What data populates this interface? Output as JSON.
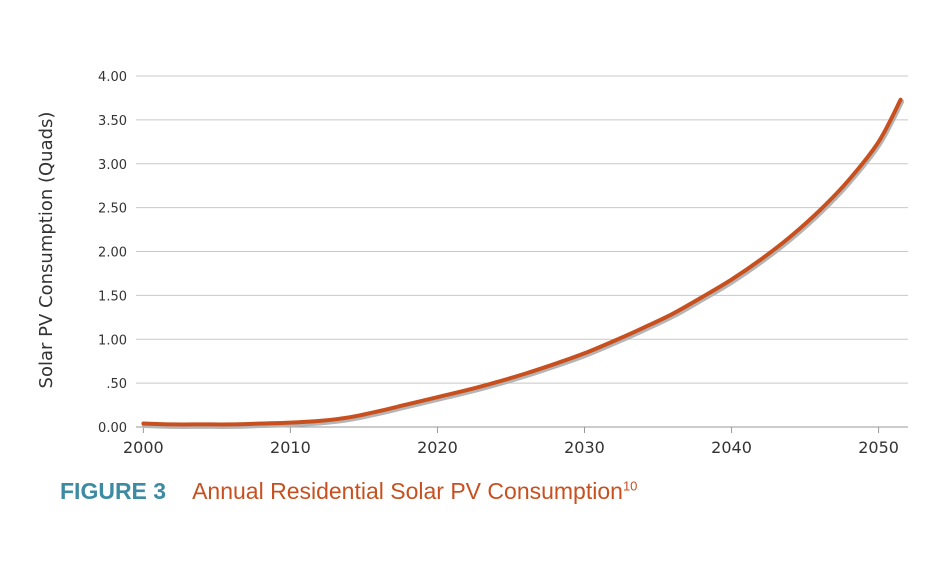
{
  "colors": {
    "line": "#c8501f",
    "line_shadow": "#b5b5b5",
    "grid": "#c8c8c8",
    "axis": "#999999",
    "figure_label": "#3d8ba3",
    "figure_title": "#c8501f"
  },
  "caption": {
    "figure_label": "FIGURE 3",
    "title": "Annual Residential Solar PV Consumption",
    "footnote": "10"
  },
  "chart_data": {
    "type": "line",
    "title": "Annual Residential Solar PV Consumption",
    "xlabel": "",
    "ylabel": "Solar PV Consumption (Quads)",
    "xlim": [
      1999.5,
      2052
    ],
    "ylim": [
      0,
      4
    ],
    "x_ticks": [
      2000,
      2010,
      2020,
      2030,
      2040,
      2050
    ],
    "x_tick_labels": [
      "2000",
      "2010",
      "2020",
      "2030",
      "2040",
      "2050"
    ],
    "y_ticks": [
      0,
      0.5,
      1,
      1.5,
      2,
      2.5,
      3,
      3.5,
      4
    ],
    "y_tick_labels": [
      "0.00",
      ".50",
      "1.00",
      "1.50",
      "2.00",
      "2.50",
      "3.00",
      "3.50",
      "4.00"
    ],
    "grid": true,
    "series": [
      {
        "x": [
          2000,
          2002,
          2004,
          2006,
          2008,
          2010,
          2012,
          2014,
          2016,
          2018,
          2020,
          2022,
          2024,
          2026,
          2028,
          2030,
          2032,
          2034,
          2036,
          2038,
          2040,
          2042,
          2044,
          2046,
          2048,
          2050,
          2051.5
        ],
        "y": [
          0.04,
          0.03,
          0.03,
          0.03,
          0.04,
          0.05,
          0.07,
          0.11,
          0.18,
          0.26,
          0.34,
          0.42,
          0.51,
          0.61,
          0.72,
          0.84,
          0.98,
          1.13,
          1.29,
          1.48,
          1.68,
          1.91,
          2.17,
          2.47,
          2.82,
          3.25,
          3.73
        ]
      }
    ]
  }
}
